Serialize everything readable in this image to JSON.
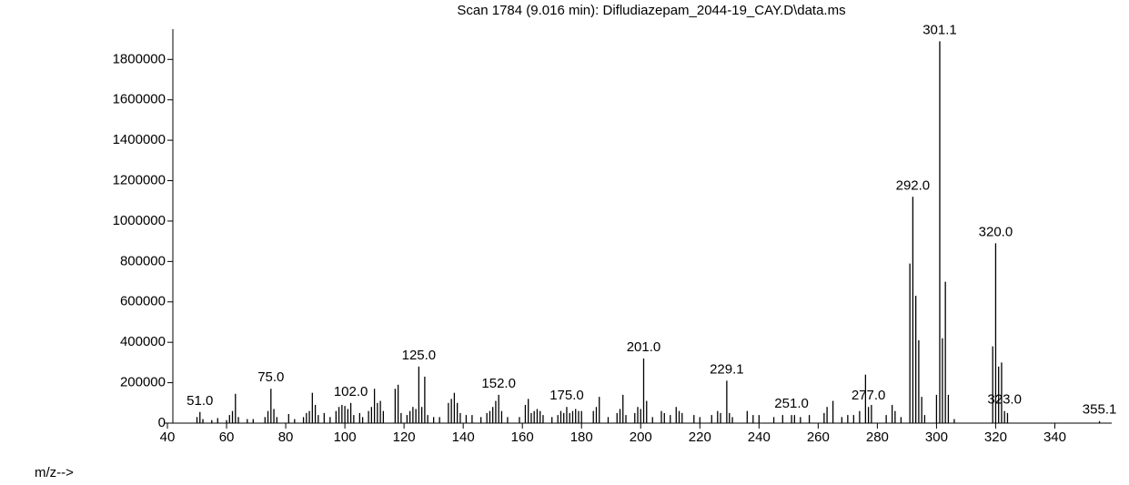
{
  "chart_data": {
    "type": "stick",
    "title": "Scan 1784 (9.016 min): Difludiazepam_2044-19_CAY.D\\data.ms",
    "x_label": "m/z-->",
    "color": "#000000",
    "x_label_color": "#0000cc",
    "xlim": [
      40,
      358
    ],
    "ylim": [
      0,
      1950000
    ],
    "xticks": [
      40,
      60,
      80,
      100,
      120,
      140,
      160,
      180,
      200,
      220,
      240,
      260,
      280,
      300,
      320,
      340
    ],
    "yticks": [
      0,
      200000,
      400000,
      600000,
      800000,
      1000000,
      1200000,
      1400000,
      1600000,
      1800000
    ],
    "x": [
      50,
      51,
      52,
      55,
      57,
      60,
      61,
      62,
      63,
      64,
      67,
      69,
      73,
      74,
      75,
      76,
      77,
      81,
      83,
      86,
      87,
      88,
      89,
      90,
      91,
      93,
      95,
      97,
      98,
      99,
      100,
      101,
      102,
      103,
      105,
      106,
      108,
      109,
      110,
      111,
      112,
      113,
      117,
      118,
      119,
      121,
      122,
      123,
      124,
      125,
      126,
      127,
      128,
      130,
      132,
      135,
      136,
      137,
      138,
      139,
      141,
      143,
      146,
      148,
      149,
      150,
      151,
      152,
      153,
      155,
      159,
      161,
      162,
      163,
      164,
      165,
      166,
      167,
      170,
      172,
      173,
      174,
      175,
      176,
      177,
      178,
      179,
      180,
      184,
      185,
      186,
      189,
      192,
      193,
      194,
      195,
      198,
      199,
      200,
      201,
      202,
      204,
      207,
      208,
      210,
      212,
      213,
      214,
      218,
      220,
      224,
      226,
      227,
      229.1,
      230,
      231,
      236,
      238,
      240,
      245,
      248,
      251,
      252,
      254,
      257,
      262,
      263,
      265,
      268,
      270,
      272,
      274,
      276,
      277,
      278,
      283,
      285,
      286,
      288,
      291,
      292,
      293,
      294,
      295,
      296,
      300,
      301.1,
      302,
      303,
      304,
      306,
      319,
      320,
      321,
      322,
      323,
      324,
      355.1
    ],
    "values": [
      30000,
      55000,
      20000,
      15000,
      25000,
      15000,
      40000,
      60000,
      145000,
      30000,
      20000,
      20000,
      30000,
      60000,
      170000,
      70000,
      30000,
      45000,
      20000,
      30000,
      50000,
      60000,
      150000,
      90000,
      40000,
      50000,
      30000,
      60000,
      80000,
      90000,
      85000,
      70000,
      100000,
      40000,
      50000,
      30000,
      60000,
      80000,
      170000,
      100000,
      110000,
      60000,
      170000,
      190000,
      50000,
      40000,
      60000,
      80000,
      70000,
      280000,
      80000,
      230000,
      40000,
      30000,
      30000,
      100000,
      120000,
      150000,
      100000,
      50000,
      40000,
      40000,
      30000,
      50000,
      60000,
      80000,
      110000,
      140000,
      60000,
      30000,
      30000,
      90000,
      120000,
      50000,
      60000,
      70000,
      60000,
      40000,
      30000,
      40000,
      60000,
      50000,
      80000,
      50000,
      60000,
      70000,
      60000,
      60000,
      60000,
      80000,
      130000,
      30000,
      50000,
      70000,
      140000,
      40000,
      50000,
      80000,
      70000,
      320000,
      110000,
      30000,
      60000,
      50000,
      40000,
      80000,
      60000,
      50000,
      40000,
      30000,
      40000,
      60000,
      50000,
      210000,
      50000,
      30000,
      60000,
      40000,
      40000,
      30000,
      40000,
      40000,
      40000,
      30000,
      40000,
      50000,
      80000,
      110000,
      30000,
      40000,
      40000,
      60000,
      240000,
      80000,
      90000,
      40000,
      90000,
      60000,
      30000,
      790000,
      1120000,
      630000,
      410000,
      130000,
      40000,
      140000,
      1890000,
      420000,
      700000,
      140000,
      20000,
      380000,
      890000,
      280000,
      300000,
      60000,
      50000,
      10000
    ],
    "peak_labels": [
      {
        "value": 51,
        "label": "51.0"
      },
      {
        "value": 75,
        "label": "75.0"
      },
      {
        "value": 102,
        "label": "102.0"
      },
      {
        "value": 125,
        "label": "125.0"
      },
      {
        "value": 152,
        "label": "152.0"
      },
      {
        "value": 175,
        "label": "175.0"
      },
      {
        "value": 201,
        "label": "201.0"
      },
      {
        "value": 229.1,
        "label": "229.1"
      },
      {
        "value": 251,
        "label": "251.0"
      },
      {
        "value": 277,
        "label": "277.0"
      },
      {
        "value": 292,
        "label": "292.0"
      },
      {
        "value": 301.1,
        "label": "301.1"
      },
      {
        "value": 320,
        "label": "320.0"
      },
      {
        "value": 323,
        "label": "323.0"
      },
      {
        "value": 355.1,
        "label": "355.1"
      }
    ]
  }
}
